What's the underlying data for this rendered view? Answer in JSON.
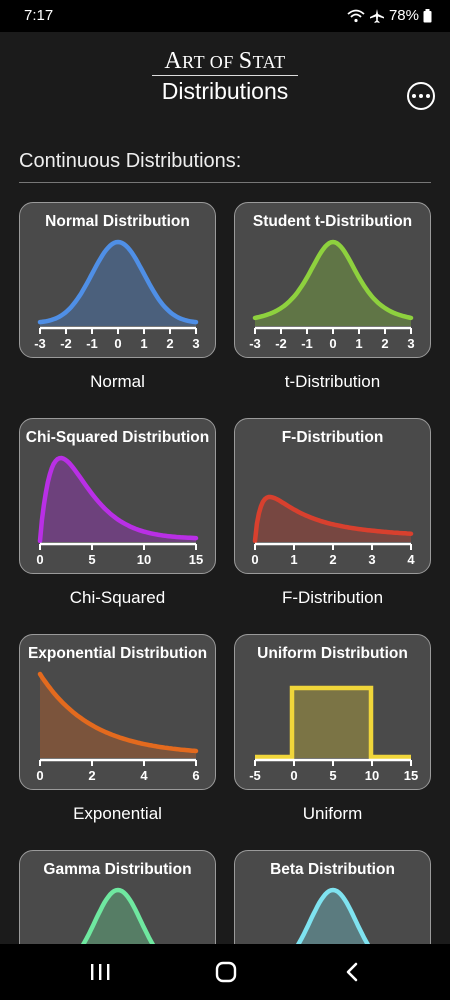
{
  "status": {
    "time": "7:17",
    "battery": "78%"
  },
  "header": {
    "title_first": "A",
    "title_rest": "rt of ",
    "title_second": "S",
    "title_rest2": "tat",
    "subtitle": "Distributions"
  },
  "section": {
    "title": "Continuous Distributions:"
  },
  "cards": [
    {
      "title": "Normal Distribution",
      "caption": "Normal",
      "color": "#4f8fe6",
      "kind": "normal",
      "ticks": [
        "-3",
        "-2",
        "-1",
        "0",
        "1",
        "2",
        "3"
      ]
    },
    {
      "title": "Student t-Distribution",
      "caption": "t-Distribution",
      "color": "#8ed13e",
      "kind": "t",
      "ticks": [
        "-3",
        "-2",
        "-1",
        "0",
        "1",
        "2",
        "3"
      ]
    },
    {
      "title": "Chi-Squared Distribution",
      "caption": "Chi-Squared",
      "color": "#b92fe6",
      "kind": "chisq",
      "ticks": [
        "0",
        "5",
        "10",
        "15"
      ]
    },
    {
      "title": "F-Distribution",
      "caption": "F-Distribution",
      "color": "#d8402e",
      "kind": "f",
      "ticks": [
        "0",
        "1",
        "2",
        "3",
        "4"
      ]
    },
    {
      "title": "Exponential Distribution",
      "caption": "Exponential",
      "color": "#e36a1e",
      "kind": "exp",
      "ticks": [
        "0",
        "2",
        "4",
        "6"
      ]
    },
    {
      "title": "Uniform Distribution",
      "caption": "Uniform",
      "color": "#f0d63a",
      "kind": "uniform",
      "ticks": [
        "-5",
        "0",
        "5",
        "10",
        "15"
      ]
    },
    {
      "title": "Gamma Distribution",
      "caption": "",
      "color": "#6fe8a0",
      "kind": "gamma",
      "ticks": []
    },
    {
      "title": "Beta Distribution",
      "caption": "",
      "color": "#7fe3f0",
      "kind": "beta",
      "ticks": []
    }
  ]
}
